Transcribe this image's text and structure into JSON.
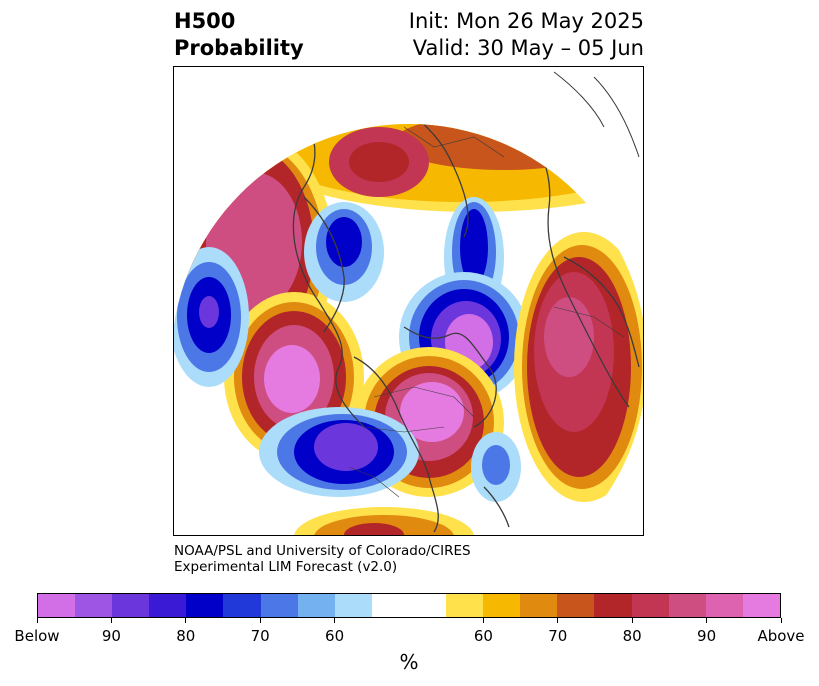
{
  "header": {
    "title_line1": "H500",
    "title_line2": "Probability",
    "init_label": "Init: Mon 26 May 2025",
    "valid_label": "Valid: 30 May – 05 Jun"
  },
  "credit": {
    "line1": "NOAA/PSL and University of Colorado/CIRES",
    "line2": "Experimental LIM Forecast (v2.0)"
  },
  "colorbar": {
    "unit": "%",
    "colors": [
      "#d36fe6",
      "#9f55e3",
      "#6b37dd",
      "#3b1ad6",
      "#0000c8",
      "#2239d9",
      "#4c77e6",
      "#74b1f0",
      "#abdcfa",
      "#ffffff",
      "#ffffff",
      "#ffe14b",
      "#f6b800",
      "#e08a10",
      "#c8551b",
      "#b22528",
      "#c23553",
      "#cf4e82",
      "#dd63b0",
      "#e57ae0"
    ],
    "ticks": [
      "Below",
      "90",
      "80",
      "70",
      "60",
      "60",
      "70",
      "80",
      "90",
      "Above"
    ]
  },
  "map_colors": {
    "below_strong": "#0000c8",
    "below_mid": "#4c77e6",
    "below_weak": "#abdcfa",
    "below_extreme": "#6b37dd",
    "above_weak": "#ffe14b",
    "above_mid": "#e08a10",
    "above_strong": "#b22528",
    "above_extreme": "#e57ae0",
    "coast": "#3b3b3b"
  }
}
